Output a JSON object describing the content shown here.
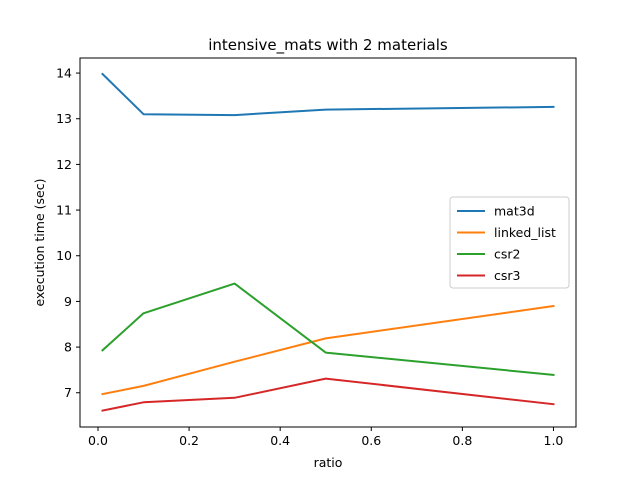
{
  "chart_data": {
    "type": "line",
    "title": "intensive_mats with 2 materials",
    "xlabel": "ratio",
    "ylabel": "execution time (sec)",
    "xlim": [
      -0.0395,
      1.0495
    ],
    "ylim": [
      6.25,
      14.33
    ],
    "x_ticks": [
      0.0,
      0.2,
      0.4,
      0.6,
      0.8,
      1.0
    ],
    "x_tick_labels": [
      "0.0",
      "0.2",
      "0.4",
      "0.6",
      "0.8",
      "1.0"
    ],
    "y_ticks": [
      7,
      8,
      9,
      10,
      11,
      12,
      13,
      14
    ],
    "y_tick_labels": [
      "7",
      "8",
      "9",
      "10",
      "11",
      "12",
      "13",
      "14"
    ],
    "grid": false,
    "legend_position": "center-right",
    "x": [
      0.01,
      0.1,
      0.3,
      0.5,
      1.0
    ],
    "series": [
      {
        "name": "mat3d",
        "color": "#1f77b4",
        "values": [
          13.98,
          13.1,
          13.08,
          13.2,
          13.26
        ]
      },
      {
        "name": "linked_list",
        "color": "#ff7f0e",
        "values": [
          6.97,
          7.15,
          7.68,
          8.19,
          8.9
        ]
      },
      {
        "name": "csr2",
        "color": "#2ca02c",
        "values": [
          7.93,
          8.74,
          9.39,
          7.88,
          7.39
        ]
      },
      {
        "name": "csr3",
        "color": "#d62728",
        "values": [
          6.61,
          6.79,
          6.89,
          7.31,
          6.75
        ]
      }
    ]
  }
}
